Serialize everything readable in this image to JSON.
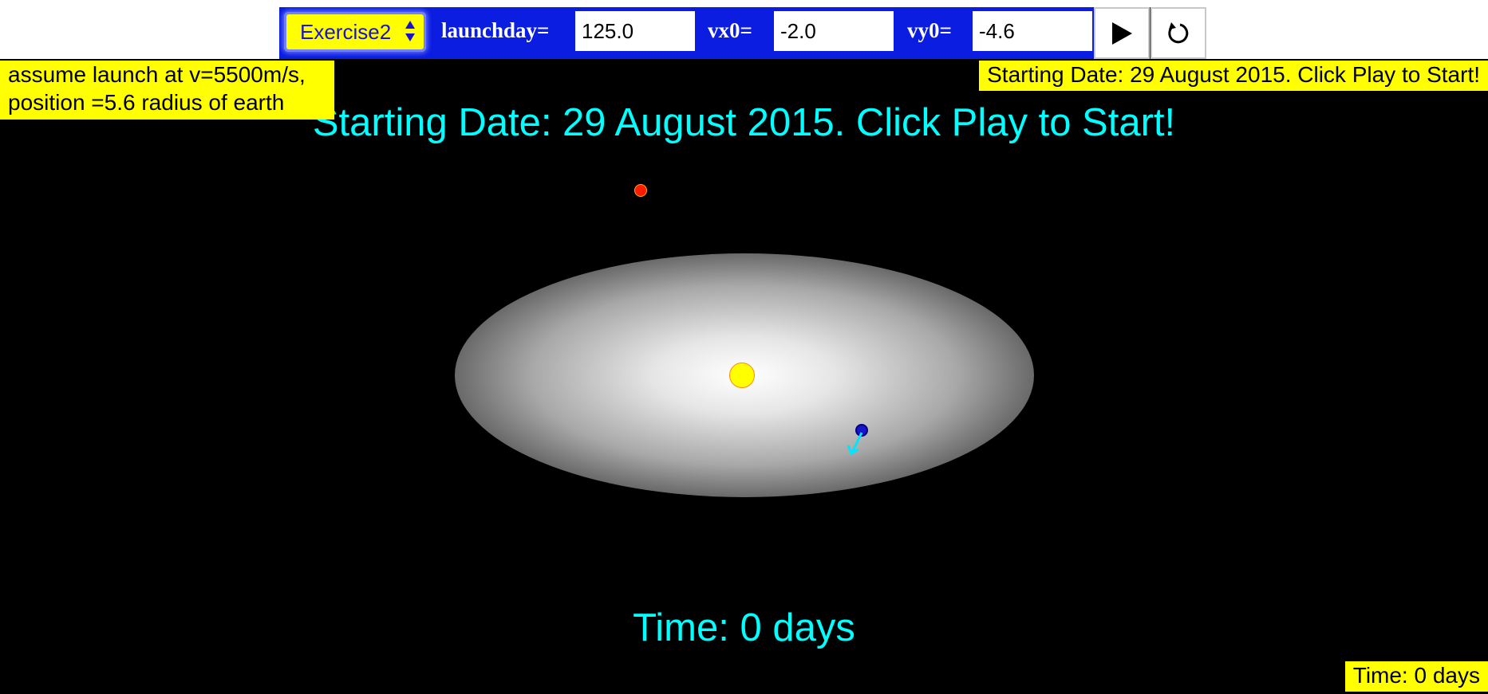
{
  "toolbar": {
    "scenario_select": "Exercise2",
    "launchday_label": "launchday=",
    "launchday_value": "125.0",
    "vx0_label": "vx0=",
    "vx0_value": "-2.0",
    "vy0_label": "vy0=",
    "vy0_value": "-4.6",
    "play_icon": "play-icon",
    "reset_icon": "reset-icon"
  },
  "simulation": {
    "note_line1": "assume launch at v=5500m/s,",
    "note_line2": "position =5.6 radius of earth",
    "status_box": "Starting Date: 29 August 2015. Click Play to Start!",
    "headline": "Starting Date: 29 August 2015. Click Play to Start!",
    "time_big": "Time: 0 days",
    "time_box": "Time: 0 days"
  },
  "colors": {
    "toolbar_bg": "#0b1de0",
    "canvas_bg": "#000000",
    "highlight": "#ffff00",
    "cyan_text": "#00ffff",
    "sun": "#ffff00",
    "planet": "#ff1a00",
    "probe": "#1a14c8",
    "velocity_arrow": "#00e5ff"
  }
}
